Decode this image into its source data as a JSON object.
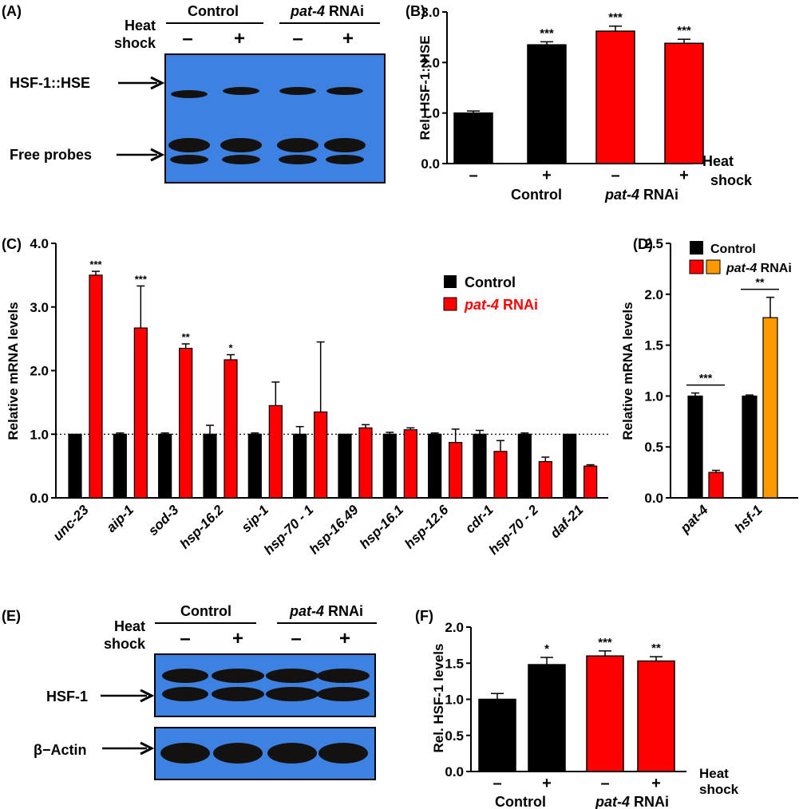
{
  "colors": {
    "control": "#000000",
    "rnai": "#ff0000",
    "hsf1_rnai": "#ff9900",
    "blot_bg": "#3d82e3",
    "band": "#141210"
  },
  "panels": {
    "a": {
      "label": "(A)",
      "group_control": "Control",
      "group_rnai_gene": "pat-4",
      "group_rnai_suffix": " RNAi",
      "heat_line1": "Heat",
      "heat_line2": "shock",
      "signs": [
        "–",
        "+",
        "–",
        "+"
      ],
      "band_labels": [
        "HSF-1::HSE",
        "Free probes"
      ]
    },
    "e": {
      "label": "(E)",
      "group_control": "Control",
      "group_rnai_gene": "pat-4",
      "group_rnai_suffix": " RNAi",
      "heat_line1": "Heat",
      "heat_line2": "shock",
      "signs": [
        "–",
        "+",
        "–",
        "+"
      ],
      "band_labels": [
        "HSF-1",
        "β−Actin"
      ]
    }
  },
  "chart_data": [
    {
      "panel": "(B)",
      "type": "bar",
      "ylabel": "Rel. HSF-1::HSE",
      "ylim": [
        0,
        3
      ],
      "yticks": [
        "0.0",
        "1.0",
        "2.0",
        "3.0"
      ],
      "categories": [
        "Control, Heat shock –",
        "Control, Heat shock +",
        "pat-4 RNAi, Heat shock –",
        "pat-4 RNAi, Heat shock +"
      ],
      "tick_signs": [
        "–",
        "+",
        "–",
        "+"
      ],
      "groups": [
        "Control",
        "pat-4 RNAi"
      ],
      "group_rnai_gene": "pat-4",
      "group_rnai_suffix": " RNAi",
      "corner_label": [
        "Heat",
        "shock"
      ],
      "values": [
        1.0,
        2.35,
        2.62,
        2.38
      ],
      "errors": [
        0.04,
        0.06,
        0.1,
        0.08
      ],
      "significance": [
        "",
        "***",
        "***",
        "***"
      ]
    },
    {
      "panel": "(C)",
      "type": "bar",
      "ylabel": "Relative mRNA levels",
      "ylim": [
        0,
        4
      ],
      "yticks": [
        "0.0",
        "1.0",
        "2.0",
        "3.0",
        "4.0"
      ],
      "reference_line": 1.0,
      "legend_position": "top-right",
      "categories": [
        "unc-23",
        "aip-1",
        "sod-3",
        "hsp-16.2",
        "sip-1",
        "hsp-70 - 1",
        "hsp-16.49",
        "hsp-16.1",
        "hsp-12.6",
        "cdr-1",
        "hsp-70 - 2",
        "daf-21"
      ],
      "series": [
        {
          "name": "Control",
          "values": [
            1.0,
            1.0,
            1.0,
            1.0,
            1.0,
            1.0,
            1.0,
            1.0,
            1.0,
            1.0,
            1.0,
            1.0
          ],
          "errors": [
            0.0,
            0.02,
            0.02,
            0.14,
            0.02,
            0.12,
            0.0,
            0.03,
            0.02,
            0.06,
            0.02,
            0.0
          ]
        },
        {
          "name": "pat-4 RNAi",
          "legend_gene": "pat-4",
          "legend_suffix": " RNAi",
          "values": [
            3.5,
            2.67,
            2.35,
            2.17,
            1.45,
            1.35,
            1.1,
            1.07,
            0.87,
            0.73,
            0.57,
            0.5
          ],
          "errors": [
            0.06,
            0.66,
            0.07,
            0.08,
            0.37,
            1.1,
            0.05,
            0.03,
            0.21,
            0.17,
            0.07,
            0.02
          ],
          "significance": [
            "***",
            "***",
            "**",
            "*",
            "",
            "",
            "",
            "",
            "",
            "",
            "",
            ""
          ]
        }
      ]
    },
    {
      "panel": "(D)",
      "type": "bar",
      "ylabel": "Relative mRNA levels",
      "ylim": [
        0,
        2.5
      ],
      "yticks": [
        "0.0",
        "0.5",
        "1.0",
        "1.5",
        "2.0",
        "2.5"
      ],
      "legend_position": "top",
      "categories": [
        "pat-4",
        "hsf-1"
      ],
      "series": [
        {
          "name": "Control",
          "values": [
            1.0,
            1.0
          ],
          "errors": [
            0.03,
            0.01
          ]
        },
        {
          "name": "pat-4 RNAi",
          "legend_gene": "pat-4",
          "legend_suffix": " RNAi",
          "values": [
            0.25,
            1.77
          ],
          "errors": [
            0.02,
            0.2
          ]
        }
      ],
      "significance": [
        "***",
        "**"
      ]
    },
    {
      "panel": "(F)",
      "type": "bar",
      "ylabel": "Rel. HSF-1 levels",
      "ylim": [
        0,
        2
      ],
      "yticks": [
        "0.0",
        "0.5",
        "1.0",
        "1.5",
        "2.0"
      ],
      "categories": [
        "Control, Heat shock –",
        "Control, Heat shock +",
        "pat-4 RNAi, Heat shock –",
        "pat-4 RNAi, Heat shock +"
      ],
      "tick_signs": [
        "–",
        "+",
        "–",
        "+"
      ],
      "groups": [
        "Control",
        "pat-4 RNAi"
      ],
      "group_rnai_gene": "pat-4",
      "group_rnai_suffix": " RNAi",
      "corner_label": [
        "Heat",
        "shock"
      ],
      "values": [
        1.0,
        1.48,
        1.6,
        1.53
      ],
      "errors": [
        0.08,
        0.1,
        0.07,
        0.06
      ],
      "significance": [
        "",
        "*",
        "***",
        "**"
      ]
    }
  ]
}
